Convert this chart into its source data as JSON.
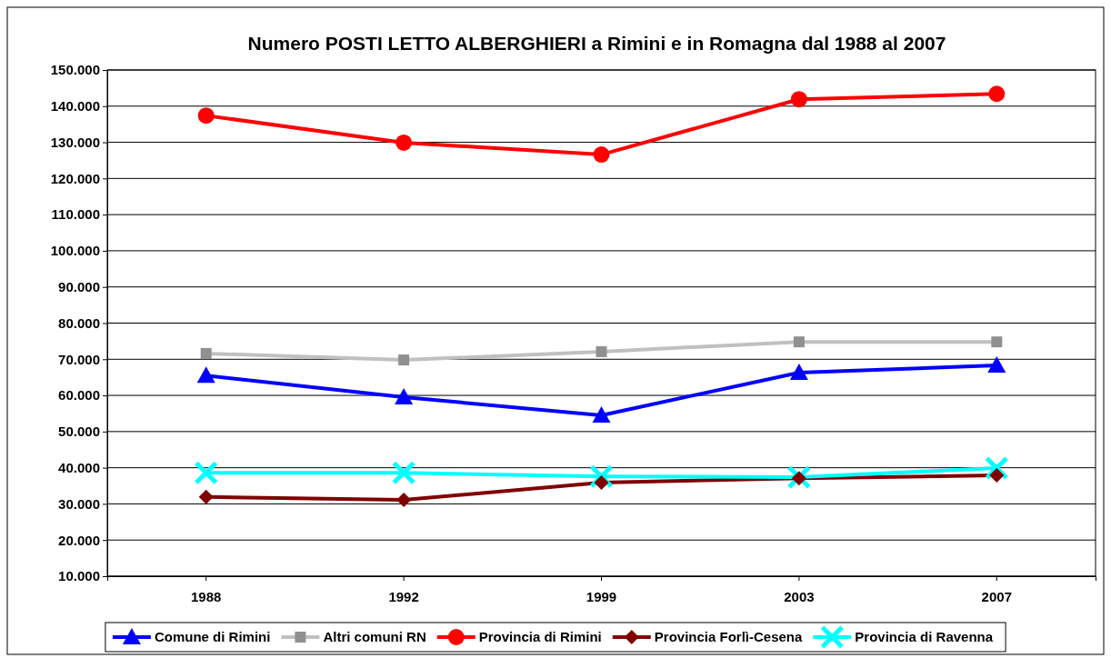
{
  "chart_data": {
    "type": "line",
    "title": "Numero POSTI LETTO ALBERGHIERI a Rimini e in Romagna dal 1988 al 2007",
    "categories": [
      "1988",
      "1992",
      "1999",
      "2003",
      "2007"
    ],
    "series": [
      {
        "name": "Comune di Rimini",
        "color": "#0000ff",
        "marker": "triangle",
        "values": [
          65500,
          59500,
          54500,
          66300,
          68300
        ]
      },
      {
        "name": "Altri comuni RN",
        "color": "#c0c0c0",
        "marker": "square",
        "values": [
          71600,
          69800,
          72100,
          74800,
          74800
        ]
      },
      {
        "name": "Provincia di Rimini",
        "color": "#ff0000",
        "marker": "circle",
        "values": [
          137400,
          129900,
          126600,
          141900,
          143400
        ]
      },
      {
        "name": "Provincia Forlì-Cesena",
        "color": "#800000",
        "marker": "diamond",
        "values": [
          31900,
          31100,
          35900,
          37100,
          37900
        ]
      },
      {
        "name": "Provincia di Ravenna",
        "color": "#00ffff",
        "marker": "cross",
        "values": [
          38600,
          38600,
          37600,
          37400,
          39900
        ]
      }
    ],
    "ylim": [
      10000,
      150000
    ],
    "yticks": [
      {
        "value": 10000,
        "label": "10.000"
      },
      {
        "value": 20000,
        "label": "20.000"
      },
      {
        "value": 30000,
        "label": "30.000"
      },
      {
        "value": 40000,
        "label": "40.000"
      },
      {
        "value": 50000,
        "label": "50.000"
      },
      {
        "value": 60000,
        "label": "60.000"
      },
      {
        "value": 70000,
        "label": "70.000"
      },
      {
        "value": 80000,
        "label": "80.000"
      },
      {
        "value": 90000,
        "label": "90.000"
      },
      {
        "value": 100000,
        "label": "100.000"
      },
      {
        "value": 110000,
        "label": "110.000"
      },
      {
        "value": 120000,
        "label": "120.000"
      },
      {
        "value": 130000,
        "label": "130.000"
      },
      {
        "value": 140000,
        "label": "140.000"
      },
      {
        "value": 150000,
        "label": "150.000"
      }
    ],
    "grid": "y",
    "legend": "bottom",
    "line_style": "solid"
  }
}
